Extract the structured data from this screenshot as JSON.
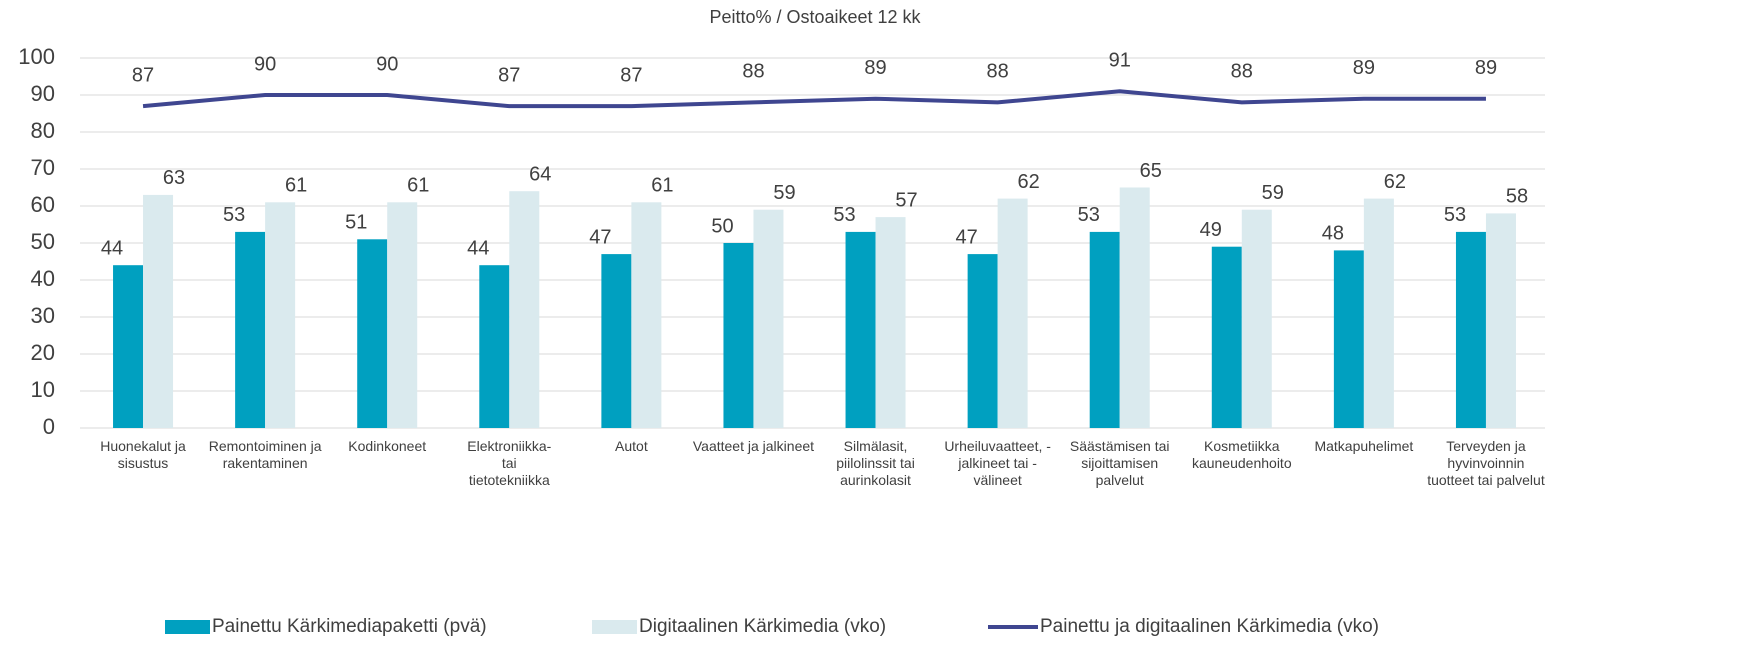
{
  "chart_data": {
    "type": "bar_line",
    "title": "Peitto% / Ostoaikeet 12 kk",
    "categories": [
      "Huonekalut ja sisustus",
      "Remontoiminen ja rakentaminen",
      "Kodinkoneet",
      "Elektroniikka-tai tietotekniikka",
      "Autot",
      "Vaatteet ja jalkineet",
      "Silmälasit, piilolinssit tai aurinkolasit",
      "Urheiluvaatteet, -jalkineet tai -välineet",
      "Säästämisen tai sijoittamisen palvelut",
      "Kosmetiikka kauneudenhoito",
      "Matkapuhelimet",
      "Terveyden ja hyvinvoinnin tuotteet tai palvelut"
    ],
    "series": [
      {
        "name": "Painettu Kärkimediapaketti (pvä)",
        "type": "bar",
        "color": "#00a0c0",
        "values": [
          44,
          53,
          51,
          44,
          47,
          50,
          53,
          47,
          53,
          49,
          48,
          53
        ]
      },
      {
        "name": "Digitaalinen Kärkimedia (vko)",
        "type": "bar",
        "color": "#daeaee",
        "values": [
          63,
          61,
          61,
          64,
          61,
          59,
          57,
          62,
          65,
          59,
          62,
          58
        ]
      },
      {
        "name": "Painettu ja digitaalinen Kärkimedia (vko)",
        "type": "line",
        "color": "#3f4690",
        "values": [
          87,
          90,
          90,
          87,
          87,
          88,
          89,
          88,
          91,
          88,
          89,
          89
        ]
      }
    ],
    "ylim": [
      0,
      100
    ],
    "yticks": [
      0,
      10,
      20,
      30,
      40,
      50,
      60,
      70,
      80,
      90,
      100
    ],
    "grid": true,
    "legend": "bottom"
  }
}
